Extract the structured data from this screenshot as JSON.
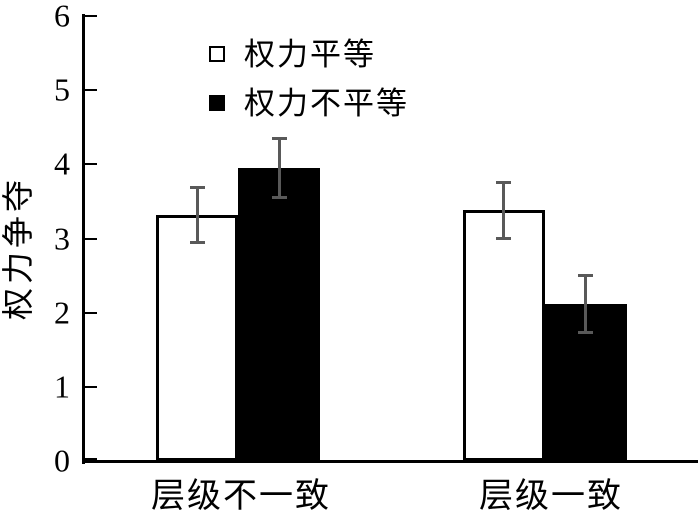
{
  "chart_data": {
    "type": "bar",
    "ylabel": "权力争夺",
    "xlabel": "",
    "categories": [
      "层级不一致",
      "层级一致"
    ],
    "series": [
      {
        "name": "权力平等",
        "style": "open",
        "fill": "#ffffff",
        "values": [
          3.32,
          3.38
        ],
        "errors": [
          0.38,
          0.38
        ]
      },
      {
        "name": "权力不平等",
        "style": "filled",
        "fill": "#000000",
        "values": [
          3.95,
          2.12
        ],
        "errors": [
          0.4,
          0.39
        ]
      }
    ],
    "ylim": [
      0,
      6
    ],
    "yticks": [
      "0",
      "1",
      "2",
      "3",
      "4",
      "5",
      "6"
    ],
    "grid": false,
    "legend_position": "top-left",
    "colors": {
      "axis": "#000000",
      "error_bar": "#595959",
      "background": "#ffffff"
    }
  }
}
